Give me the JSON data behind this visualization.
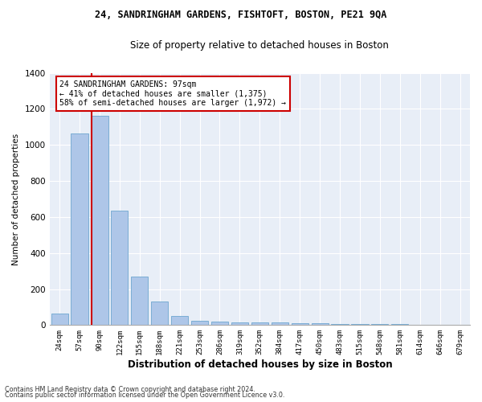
{
  "title1": "24, SANDRINGHAM GARDENS, FISHTOFT, BOSTON, PE21 9QA",
  "title2": "Size of property relative to detached houses in Boston",
  "xlabel": "Distribution of detached houses by size in Boston",
  "ylabel": "Number of detached properties",
  "categories": [
    "24sqm",
    "57sqm",
    "90sqm",
    "122sqm",
    "155sqm",
    "188sqm",
    "221sqm",
    "253sqm",
    "286sqm",
    "319sqm",
    "352sqm",
    "384sqm",
    "417sqm",
    "450sqm",
    "483sqm",
    "515sqm",
    "548sqm",
    "581sqm",
    "614sqm",
    "646sqm",
    "679sqm"
  ],
  "values": [
    65,
    1065,
    1160,
    635,
    270,
    130,
    50,
    25,
    20,
    15,
    15,
    15,
    12,
    10,
    8,
    8,
    5,
    5,
    0,
    0,
    0
  ],
  "bar_color": "#aec6e8",
  "bar_edge_color": "#7aadd4",
  "vline_color": "#cc0000",
  "annotation_text": "24 SANDRINGHAM GARDENS: 97sqm\n← 41% of detached houses are smaller (1,375)\n58% of semi-detached houses are larger (1,972) →",
  "ylim": [
    0,
    1400
  ],
  "yticks": [
    0,
    200,
    400,
    600,
    800,
    1000,
    1200,
    1400
  ],
  "bg_color": "#e8eef7",
  "footer1": "Contains HM Land Registry data © Crown copyright and database right 2024.",
  "footer2": "Contains public sector information licensed under the Open Government Licence v3.0."
}
